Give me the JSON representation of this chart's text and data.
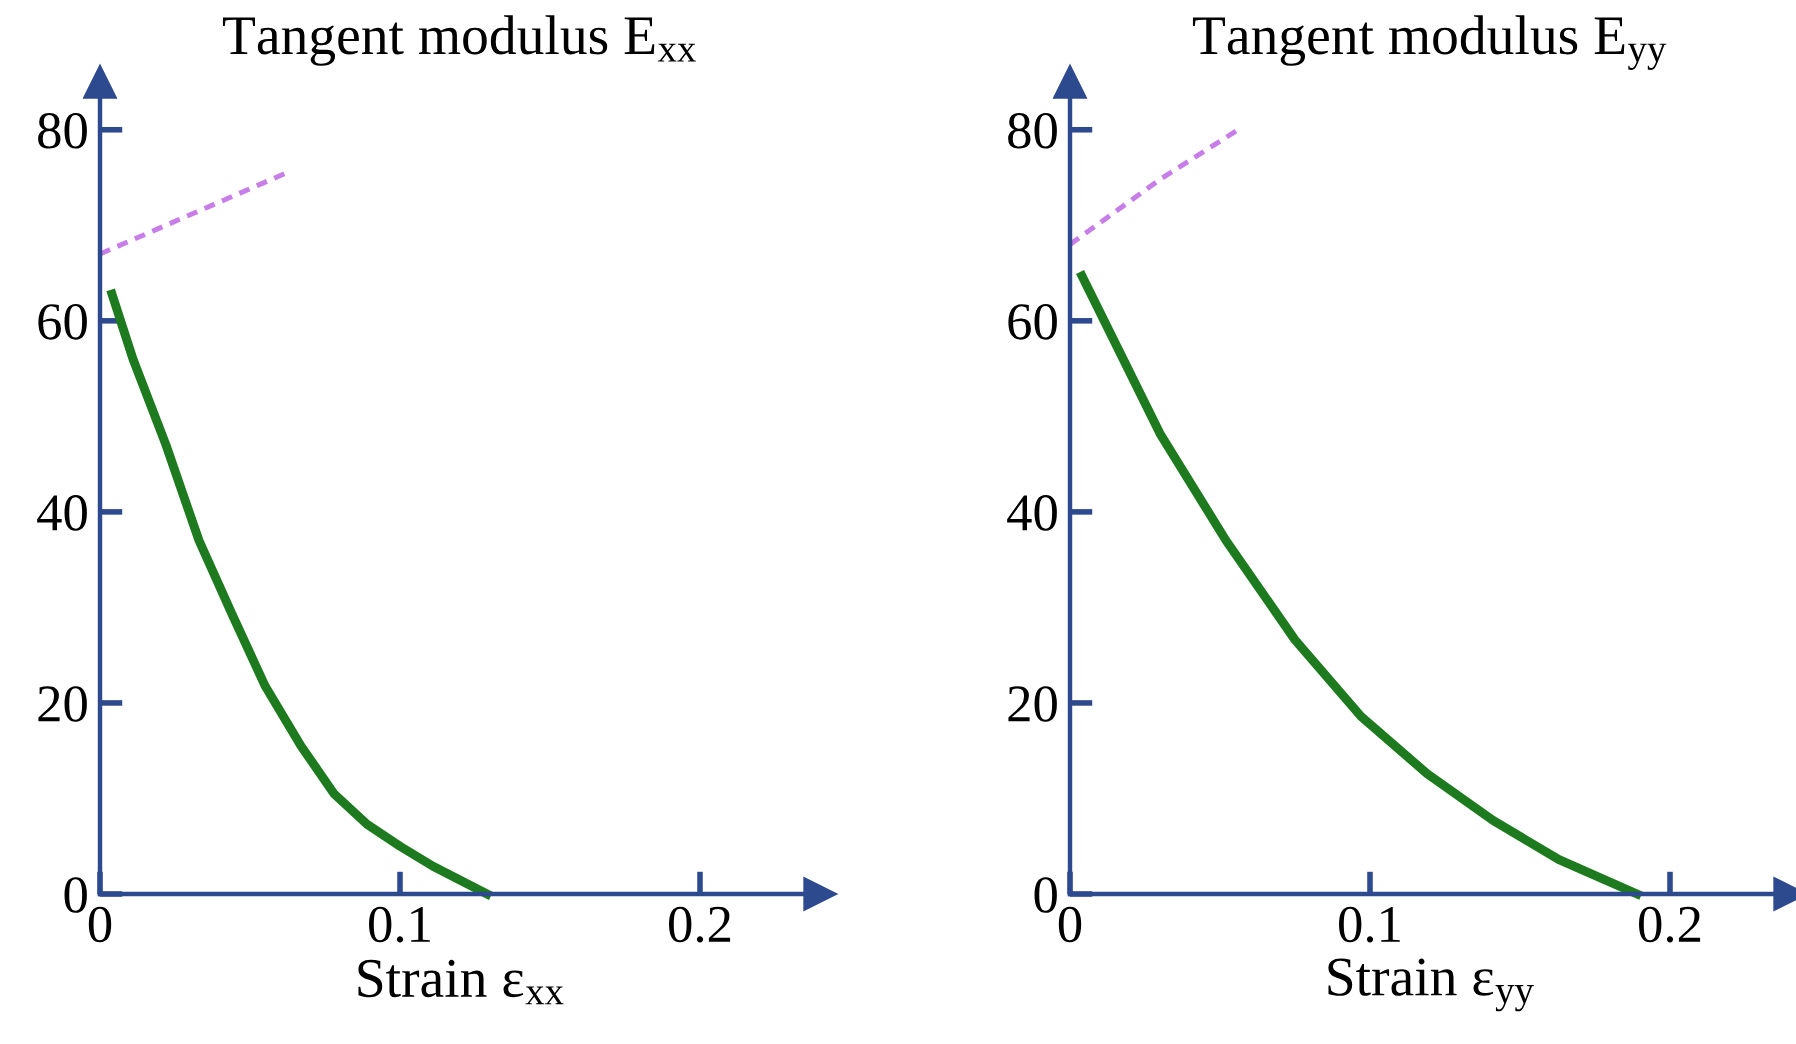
{
  "chart_data": [
    {
      "type": "line",
      "title": "Tangent modulus E$_{xx}$",
      "xlabel": "Strain ε$_{xx}$",
      "xlim": [
        0,
        0.24
      ],
      "ylim": [
        0,
        85
      ],
      "xticks": [
        0,
        0.1,
        0.2
      ],
      "yticks": [
        0,
        20,
        40,
        60,
        80
      ],
      "grid": false,
      "legend": false,
      "marker": "none",
      "series": [
        {
          "color": "#1e7a1e",
          "line_style": "solid",
          "x": [
            0.004,
            0.011,
            0.022,
            0.033,
            0.044,
            0.055,
            0.067,
            0.078,
            0.089,
            0.1,
            0.111,
            0.129
          ],
          "values": [
            62.8,
            56,
            47,
            37,
            29.3,
            21.8,
            15.5,
            10.5,
            7.3,
            5,
            2.9,
            0
          ]
        },
        {
          "color": "#c77ee8",
          "line_style": "dashed",
          "x": [
            0,
            0.063
          ],
          "values": [
            67,
            75.6
          ]
        }
      ]
    },
    {
      "type": "line",
      "title": "Tangent modulus E$_{yy}$",
      "xlabel": "Strain ε$_{yy}$",
      "xlim": [
        0,
        0.24
      ],
      "ylim": [
        0,
        85
      ],
      "xticks": [
        0,
        0.1,
        0.2
      ],
      "yticks": [
        0,
        20,
        40,
        60,
        80
      ],
      "grid": false,
      "legend": false,
      "marker": "none",
      "series": [
        {
          "color": "#1e7a1e",
          "line_style": "solid",
          "x": [
            0.004,
            0.03,
            0.052,
            0.075,
            0.097,
            0.119,
            0.141,
            0.163,
            0.189
          ],
          "values": [
            64.7,
            48.2,
            37,
            26.6,
            18.6,
            12.6,
            7.7,
            3.6,
            0
          ]
        },
        {
          "color": "#c77ee8",
          "line_style": "dashed",
          "x": [
            0,
            0.03,
            0.056
          ],
          "values": [
            68,
            74.8,
            80
          ]
        }
      ]
    }
  ]
}
